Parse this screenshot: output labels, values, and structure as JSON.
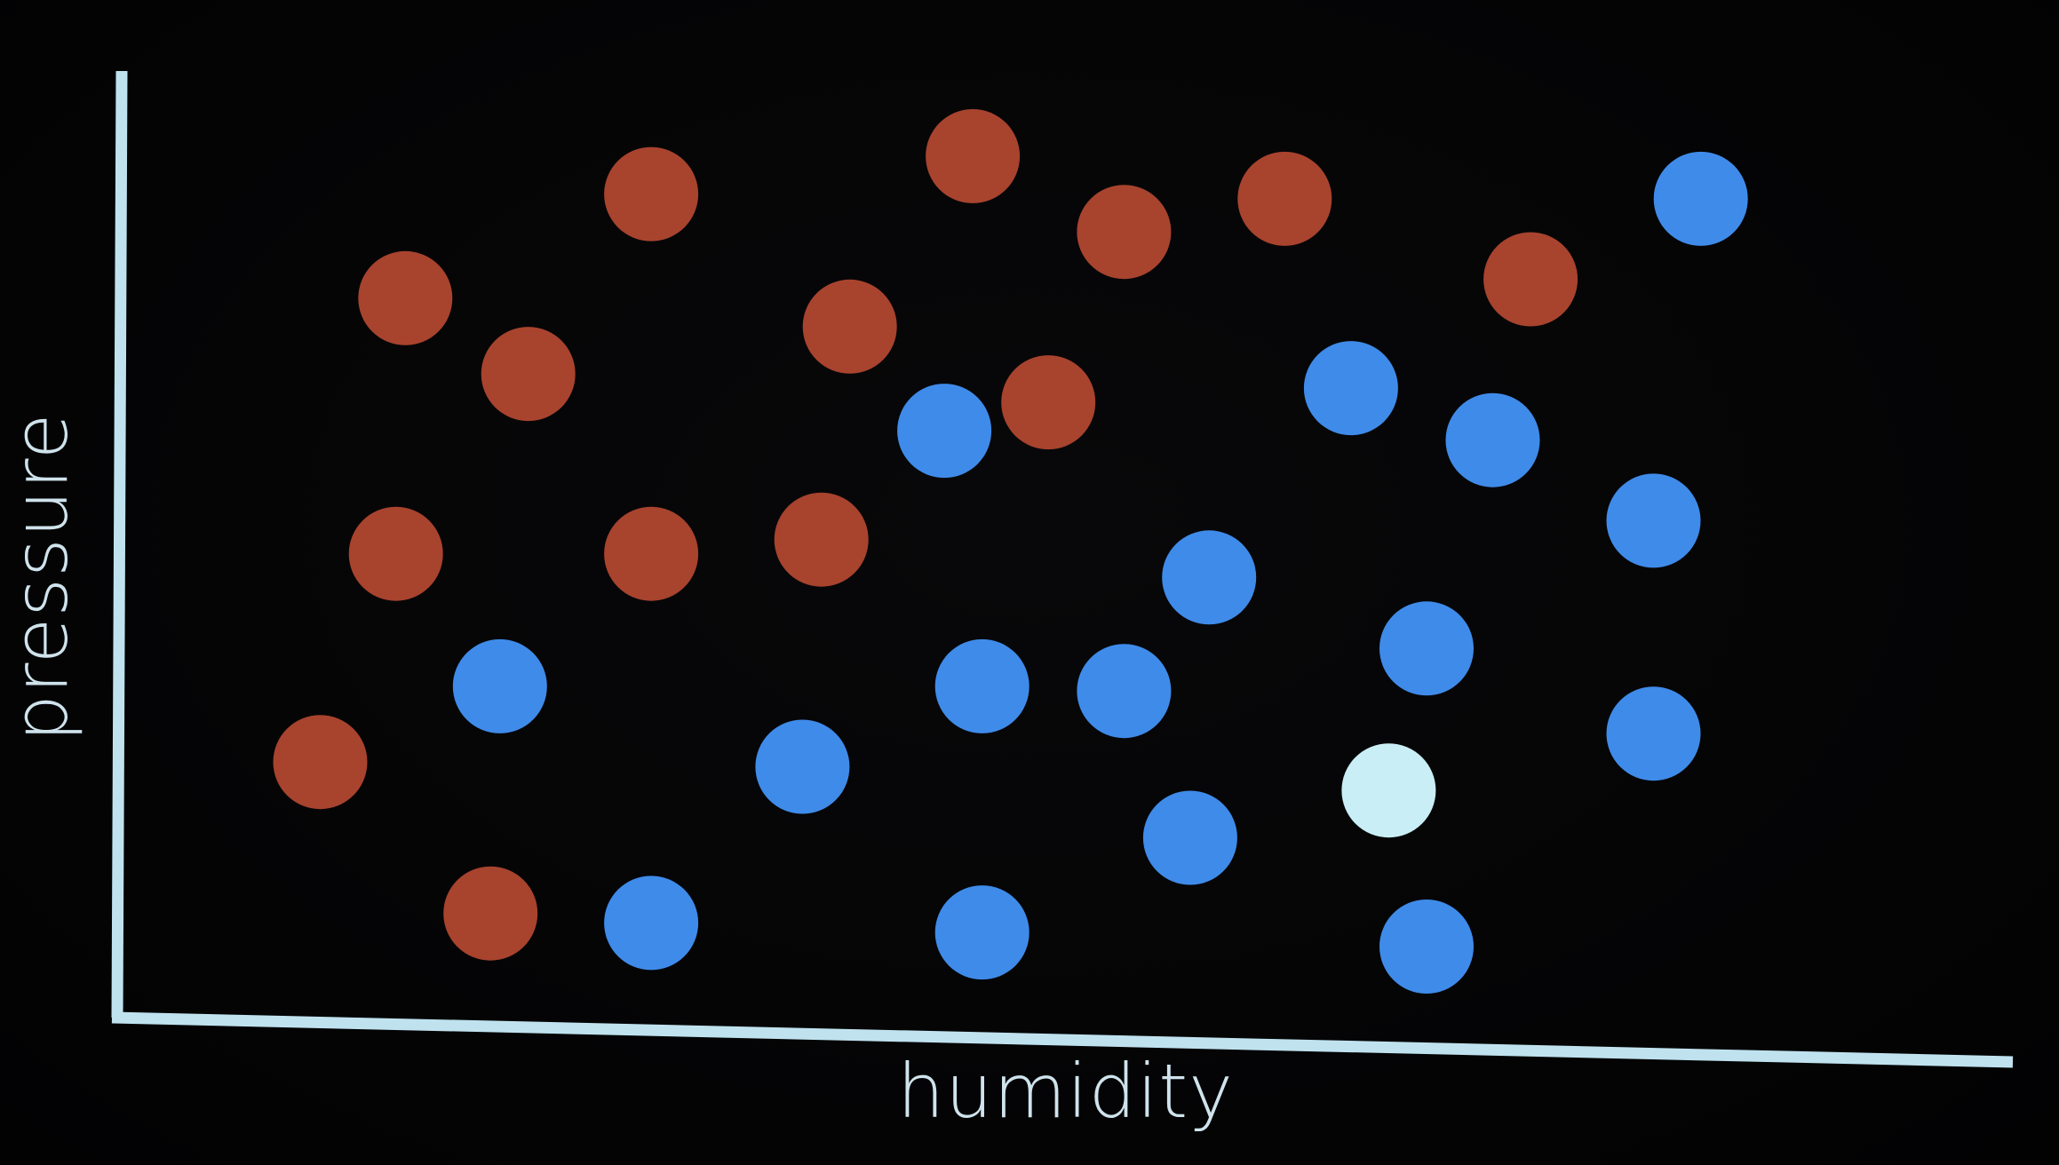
{
  "chart_data": {
    "type": "scatter",
    "xlabel": "humidity",
    "ylabel": "pressure",
    "xlim": [
      0,
      100
    ],
    "ylim": [
      0,
      100
    ],
    "grid": false,
    "colors": {
      "red": "#a8432e",
      "blue": "#3f8bea",
      "highlight": "#c9eef6",
      "axis": "#bfe2ee"
    },
    "series": [
      {
        "class": "red",
        "points": [
          {
            "x": 15,
            "y": 76
          },
          {
            "x": 21.5,
            "y": 68
          },
          {
            "x": 28,
            "y": 87
          },
          {
            "x": 38.5,
            "y": 73
          },
          {
            "x": 45,
            "y": 91
          },
          {
            "x": 49,
            "y": 65
          },
          {
            "x": 53,
            "y": 83
          },
          {
            "x": 61.5,
            "y": 86.5
          },
          {
            "x": 74.5,
            "y": 78
          },
          {
            "x": 14.5,
            "y": 49
          },
          {
            "x": 28,
            "y": 49
          },
          {
            "x": 37,
            "y": 50.5
          },
          {
            "x": 10.5,
            "y": 27
          },
          {
            "x": 19.5,
            "y": 11
          }
        ]
      },
      {
        "class": "blue",
        "points": [
          {
            "x": 83.5,
            "y": 86.5
          },
          {
            "x": 65,
            "y": 66.5
          },
          {
            "x": 72.5,
            "y": 61
          },
          {
            "x": 43.5,
            "y": 62
          },
          {
            "x": 57.5,
            "y": 46.5
          },
          {
            "x": 81,
            "y": 52.5
          },
          {
            "x": 20,
            "y": 35
          },
          {
            "x": 45.5,
            "y": 35
          },
          {
            "x": 53,
            "y": 34.5
          },
          {
            "x": 69,
            "y": 39
          },
          {
            "x": 36,
            "y": 26.5
          },
          {
            "x": 81,
            "y": 30
          },
          {
            "x": 56.5,
            "y": 19
          },
          {
            "x": 28,
            "y": 10
          },
          {
            "x": 45.5,
            "y": 9
          },
          {
            "x": 69,
            "y": 7.5
          }
        ]
      },
      {
        "class": "highlight",
        "points": [
          {
            "x": 67,
            "y": 24
          }
        ]
      }
    ]
  }
}
